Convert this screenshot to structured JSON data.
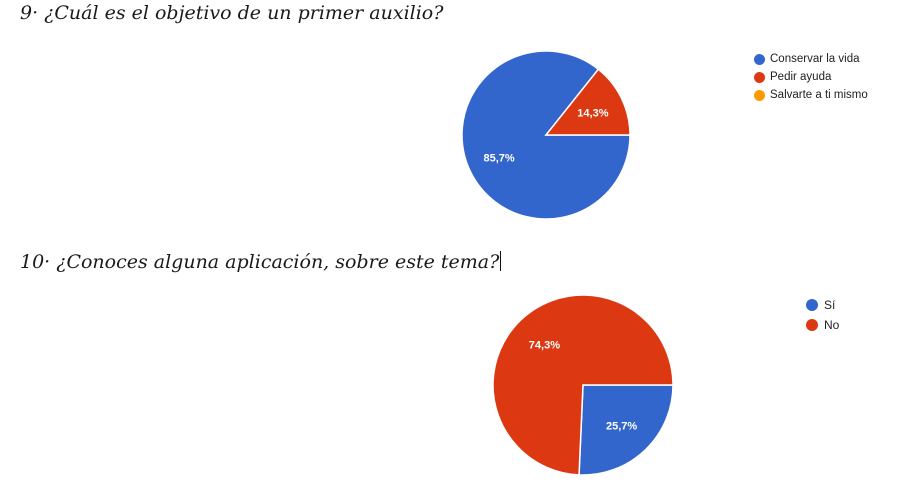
{
  "questions": {
    "q1": "9· ¿Cuál es el objetivo de un primer auxilio?",
    "q2": "10· ¿Conoces alguna aplicación, sobre este tema?"
  },
  "chart_data": [
    {
      "type": "pie",
      "title": "",
      "categories": [
        "Conservar la vida",
        "Pedir ayuda",
        "Salvarte a ti mismo"
      ],
      "values": [
        85.7,
        14.3,
        0
      ],
      "labels": [
        "85,7%",
        "14,3%",
        ""
      ],
      "colors": [
        "#3366cc",
        "#dc3912",
        "#ff9900"
      ],
      "legend": "right"
    },
    {
      "type": "pie",
      "title": "",
      "categories": [
        "Sí",
        "No"
      ],
      "values": [
        25.7,
        74.3
      ],
      "labels": [
        "25,7%",
        "74,3%"
      ],
      "colors": [
        "#3366cc",
        "#dc3912"
      ],
      "legend": "right"
    }
  ]
}
